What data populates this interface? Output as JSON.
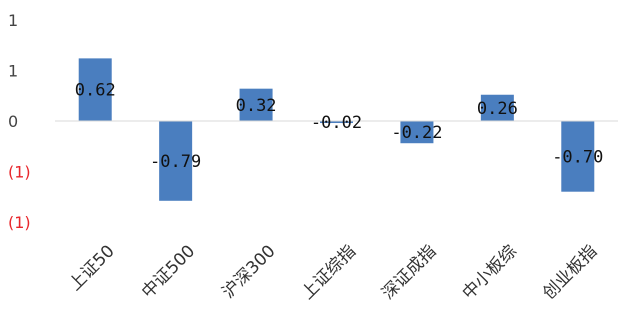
{
  "chart_data": {
    "type": "bar",
    "categories": [
      "上证50",
      "中证500",
      "沪深300",
      "上证综指",
      "深证成指",
      "中小板综",
      "创业板指"
    ],
    "values": [
      0.62,
      -0.79,
      0.32,
      -0.02,
      -0.22,
      0.26,
      -0.7
    ],
    "data_labels": [
      "0.62",
      "-0.79",
      "0.32",
      "-0.02",
      "-0.22",
      "0.26",
      "-0.70"
    ],
    "y_ticks": [
      {
        "value": 1.0,
        "label": "1"
      },
      {
        "value": 0.5,
        "label": "1"
      },
      {
        "value": 0.0,
        "label": "0"
      },
      {
        "value": -0.5,
        "label": "(1)"
      },
      {
        "value": -1.0,
        "label": "(1)"
      }
    ],
    "ylim": [
      -1.0,
      1.0
    ],
    "title": "",
    "xlabel": "",
    "ylabel": "",
    "grid": false,
    "colors": {
      "bar": "#4a7ebf",
      "negative_tick": "#e8262b",
      "positive_tick": "#444444",
      "axis": "#d9d9d9"
    }
  }
}
